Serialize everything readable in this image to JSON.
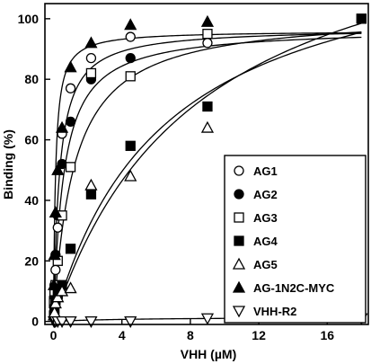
{
  "chart_data": {
    "type": "scatter",
    "xlabel": "VHH (µM)",
    "ylabel": "Binding (%)",
    "xlim": [
      -0.5,
      18.4
    ],
    "ylim": [
      -1,
      105
    ],
    "x_ticks": [
      "0",
      "4",
      "8",
      "12",
      "16"
    ],
    "y_ticks": [
      "0",
      "20",
      "40",
      "60",
      "80",
      "100"
    ],
    "legend_position": "right",
    "series": [
      {
        "name": "AG1",
        "marker": "circle-open",
        "x": [
          0.03,
          0.06,
          0.12,
          0.25,
          0.5,
          1.0,
          2.2,
          4.5,
          9.0
        ],
        "y": [
          5,
          10,
          17,
          31,
          62,
          77,
          87,
          94,
          92
        ],
        "fit": {
          "bmax": 97,
          "kd": 0.35
        }
      },
      {
        "name": "AG2",
        "marker": "circle-filled",
        "x": [
          0.03,
          0.06,
          0.12,
          0.25,
          0.5,
          1.0,
          2.2,
          4.5
        ],
        "y": [
          8,
          12,
          22,
          35,
          52,
          66,
          80,
          87
        ],
        "fit": {
          "bmax": 97,
          "kd": 0.6
        }
      },
      {
        "name": "AG3",
        "marker": "square-open",
        "x": [
          0.03,
          0.06,
          0.12,
          0.25,
          0.5,
          1.0,
          2.2,
          4.5,
          9.0,
          18.0
        ],
        "y": [
          6,
          9,
          12,
          20,
          35,
          51,
          82,
          81,
          95,
          100
        ],
        "fit": {
          "bmax": 102,
          "kd": 1.2
        }
      },
      {
        "name": "AG4",
        "marker": "square-filled",
        "x": [
          0.03,
          0.06,
          0.12,
          0.25,
          0.5,
          1.0,
          2.2,
          4.5,
          9.0,
          18.0
        ],
        "y": [
          2,
          4,
          7,
          9,
          12,
          24,
          42,
          58,
          71,
          100
        ],
        "fit": {
          "bmax": 130,
          "kd": 6.5
        }
      },
      {
        "name": "AG5",
        "marker": "triangle-up-open",
        "x": [
          0.03,
          0.06,
          0.12,
          0.25,
          0.5,
          1.0,
          2.2,
          4.5,
          9.0
        ],
        "y": [
          2,
          3,
          6,
          8,
          10,
          11,
          45,
          48,
          64
        ],
        "fit": {
          "bmax": 145,
          "kd": 8.5
        }
      },
      {
        "name": "AG-1N2C-MYC",
        "marker": "triangle-up-filled",
        "x": [
          0.03,
          0.06,
          0.12,
          0.25,
          0.5,
          1.0,
          2.2,
          4.5,
          9.0
        ],
        "y": [
          12,
          22,
          36,
          50,
          64,
          84,
          92,
          98,
          99
        ],
        "fit": {
          "bmax": 96,
          "kd": 0.12
        }
      },
      {
        "name": "VHH-R2",
        "marker": "triangle-down-open",
        "x": [
          0.03,
          0.06,
          0.12,
          0.25,
          0.5,
          1.0,
          2.2,
          4.5,
          9.0,
          18.0
        ],
        "y": [
          0,
          0,
          0,
          0,
          0,
          0,
          0,
          0,
          1,
          1
        ],
        "fit": {
          "bmax": 1.5,
          "kd": 5
        }
      }
    ]
  }
}
